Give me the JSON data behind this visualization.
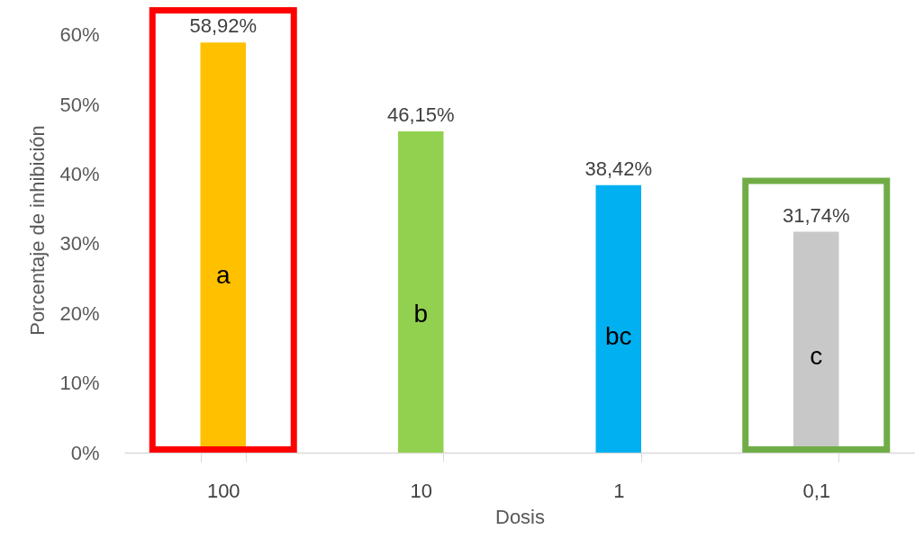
{
  "chart_data": {
    "type": "bar",
    "xlabel": "Dosis",
    "ylabel": "Porcentaje de inhibición",
    "categories": [
      "100",
      "10",
      "1",
      "0,1"
    ],
    "values": [
      58.92,
      46.15,
      38.42,
      31.74
    ],
    "colors": [
      "#ffc000",
      "#92d050",
      "#00b0f0",
      "#c8c8c8"
    ],
    "value_labels": [
      "58,92%",
      "46,15%",
      "38,42%",
      "31,74%"
    ],
    "ylim": [
      0,
      64
    ],
    "yticks": [
      {
        "value": 0,
        "label": "0%"
      },
      {
        "value": 10,
        "label": "10%"
      },
      {
        "value": 20,
        "label": "20%"
      },
      {
        "value": 30,
        "label": "30%"
      },
      {
        "value": 40,
        "label": "40%"
      },
      {
        "value": 50,
        "label": "50%"
      },
      {
        "value": 60,
        "label": "60%"
      }
    ],
    "grid": false,
    "annotations": [
      "a",
      "b",
      "bc",
      "c"
    ]
  }
}
